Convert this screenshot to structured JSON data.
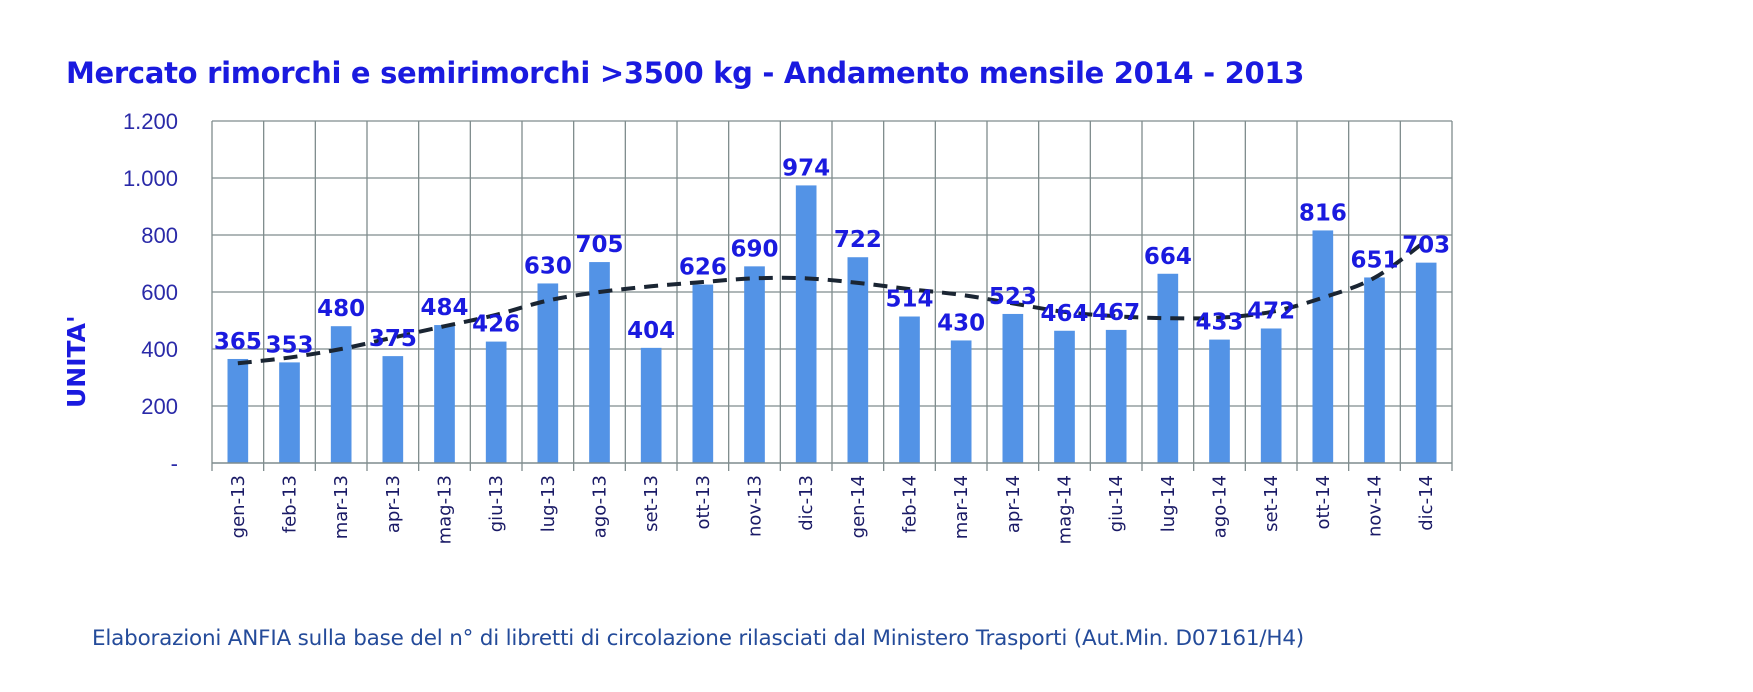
{
  "chart_data": {
    "type": "bar",
    "title": "Mercato rimorchi e semirimorchi >3500 kg - Andamento mensile 2014 - 2013",
    "ylabel": "UNITA'",
    "xlabel": "",
    "ylim": [
      0,
      1200
    ],
    "yticks": [
      {
        "value": 0,
        "label": "-"
      },
      {
        "value": 200,
        "label": "200"
      },
      {
        "value": 400,
        "label": "400"
      },
      {
        "value": 600,
        "label": "600"
      },
      {
        "value": 800,
        "label": "800"
      },
      {
        "value": 1000,
        "label": "1.000"
      },
      {
        "value": 1200,
        "label": "1.200"
      }
    ],
    "categories": [
      "gen-13",
      "feb-13",
      "mar-13",
      "apr-13",
      "mag-13",
      "giu-13",
      "lug-13",
      "ago-13",
      "set-13",
      "ott-13",
      "nov-13",
      "dic-13",
      "gen-14",
      "feb-14",
      "mar-14",
      "apr-14",
      "mag-14",
      "giu-14",
      "lug-14",
      "ago-14",
      "set-14",
      "ott-14",
      "nov-14",
      "dic-14"
    ],
    "values": [
      365,
      353,
      480,
      375,
      484,
      426,
      630,
      705,
      404,
      626,
      690,
      974,
      722,
      514,
      430,
      523,
      464,
      467,
      664,
      433,
      472,
      816,
      651,
      703
    ],
    "trend_values": [
      350,
      370,
      400,
      440,
      480,
      520,
      570,
      600,
      620,
      635,
      648,
      648,
      632,
      610,
      590,
      560,
      530,
      515,
      508,
      510,
      530,
      580,
      650,
      780
    ],
    "grid": true,
    "bar_color": "#5393e6",
    "trend_color": "#1a2533",
    "label_color": "#1a1adf"
  },
  "footer": "Elaborazioni ANFIA sulla base del  n° di libretti di circolazione rilasciati dal Ministero Trasporti (Aut.Min. D07161/H4)"
}
